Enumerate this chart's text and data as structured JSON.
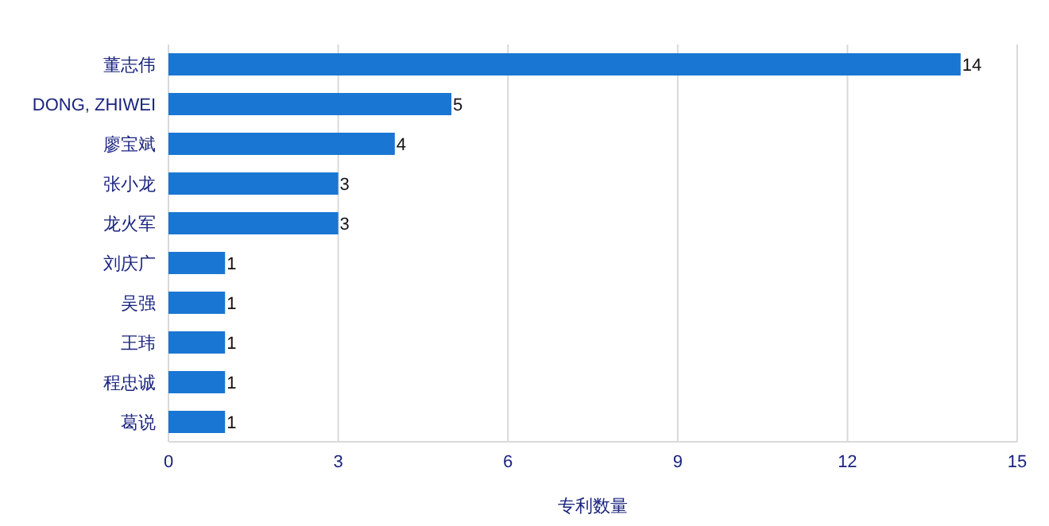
{
  "chart_data": {
    "type": "bar",
    "orientation": "horizontal",
    "categories": [
      "董志伟",
      "DONG, ZHIWEI",
      "廖宝斌",
      "张小龙",
      "龙火军",
      "刘庆广",
      "吴强",
      "王玮",
      "程忠诚",
      "葛说"
    ],
    "values": [
      14,
      5,
      4,
      3,
      3,
      1,
      1,
      1,
      1,
      1
    ],
    "color": "#1976d2",
    "xlim": [
      0,
      15
    ],
    "xticks": [
      0,
      3,
      6,
      9,
      12,
      15
    ],
    "xlabel": "专利数量",
    "grid": "x",
    "data_labels": true
  }
}
